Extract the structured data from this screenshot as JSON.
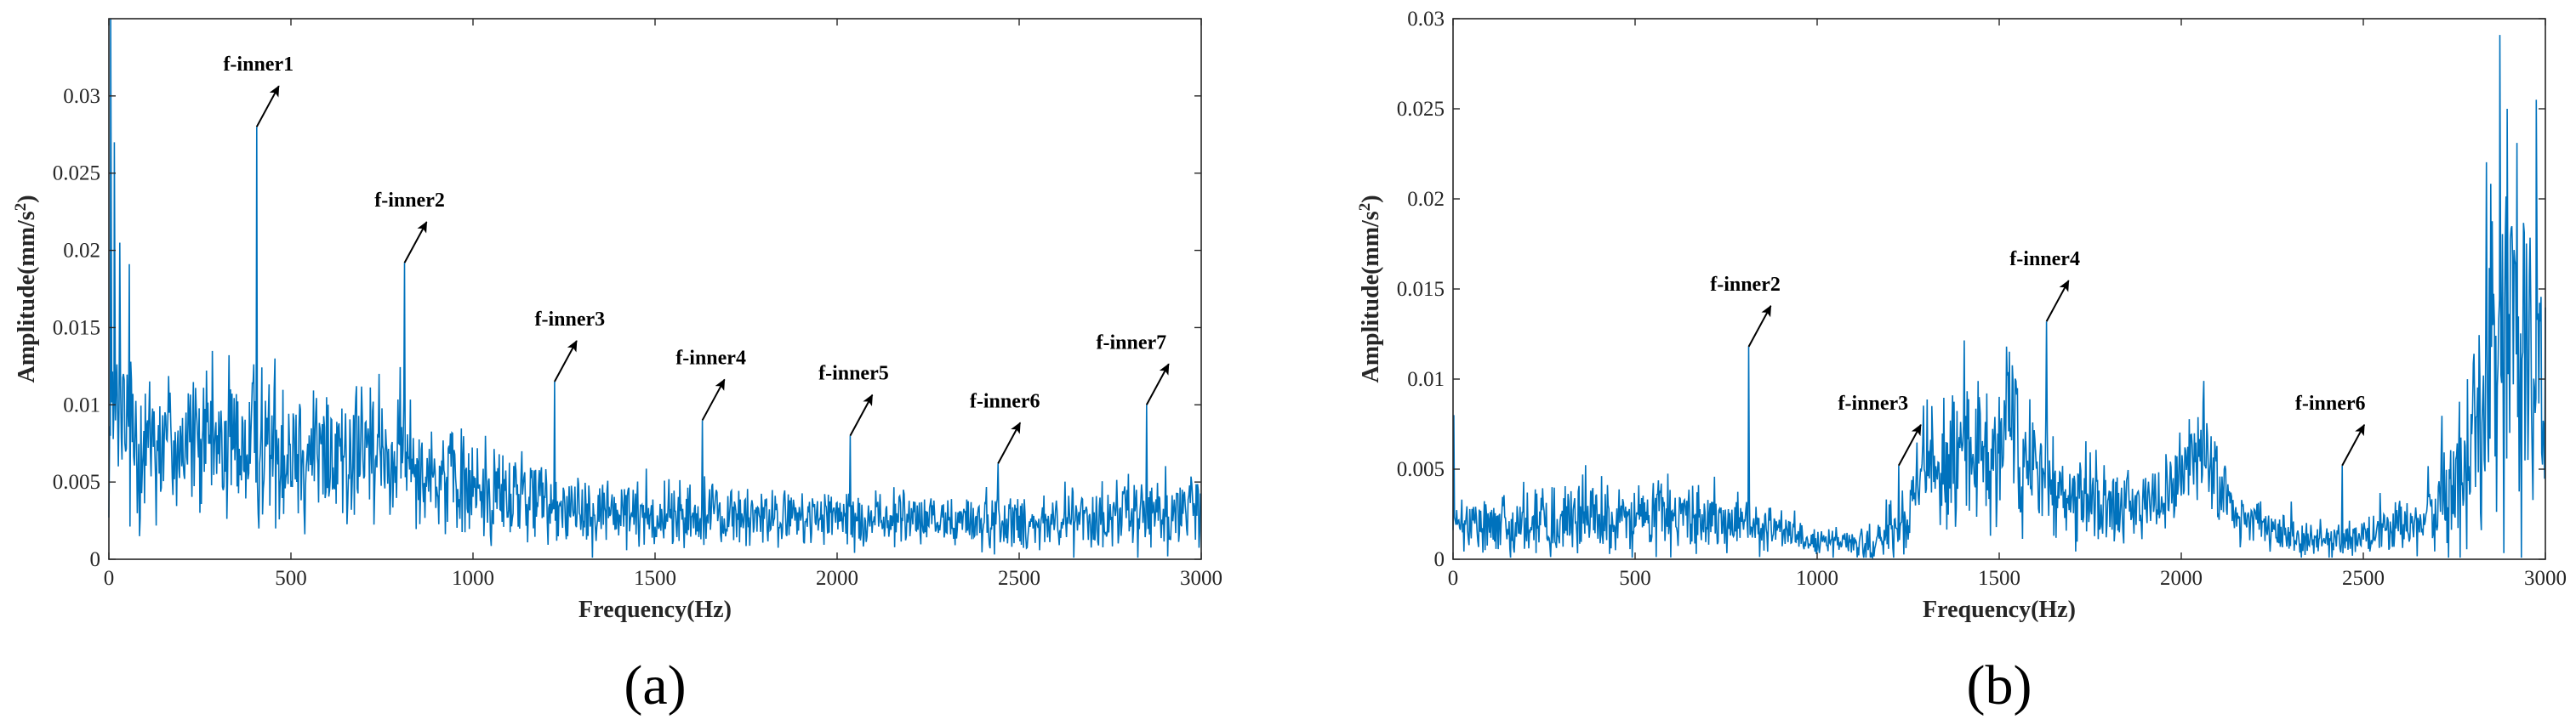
{
  "colors": {
    "signal": "#0072BD",
    "axis": "#262626",
    "annotation": "#000000"
  },
  "chart_data": [
    {
      "type": "line",
      "panel_label": "(a)",
      "xlabel": "Frequency(Hz)",
      "ylabel_main": "Amplitude(mm/s",
      "ylabel_sup": "2",
      "ylabel_end": ")",
      "xlim": [
        0,
        3000
      ],
      "ylim": [
        0,
        0.035
      ],
      "xticks": [
        0,
        500,
        1000,
        1500,
        2000,
        2500,
        3000
      ],
      "xtick_labels": [
        "0",
        "500",
        "1000",
        "1500",
        "2000",
        "2500",
        "3000"
      ],
      "yticks": [
        0,
        0.005,
        0.01,
        0.015,
        0.02,
        0.025,
        0.03
      ],
      "ytick_labels": [
        "0",
        "0.005",
        "0.01",
        "0.015",
        "0.02",
        "0.025",
        "0.03"
      ],
      "grid": false,
      "noise_profile": {
        "x": [
          0,
          50,
          200,
          500,
          800,
          1000,
          1300,
          1500,
          2000,
          2500,
          2800,
          3000
        ],
        "level": [
          0.0085,
          0.0085,
          0.0075,
          0.0072,
          0.0065,
          0.0045,
          0.0033,
          0.0028,
          0.0026,
          0.0024,
          0.0028,
          0.0032
        ],
        "spread": [
          0.0045,
          0.0045,
          0.0035,
          0.0035,
          0.0032,
          0.0025,
          0.0018,
          0.0015,
          0.0013,
          0.0013,
          0.0016,
          0.0018
        ]
      },
      "peaks": [
        {
          "x": 5,
          "y": 0.035
        },
        {
          "x": 15,
          "y": 0.027
        },
        {
          "x": 30,
          "y": 0.0205
        },
        {
          "x": 406,
          "y": 0.028,
          "label": "f-inner1"
        },
        {
          "x": 812,
          "y": 0.0192,
          "label": "f-inner2"
        },
        {
          "x": 1224,
          "y": 0.0115,
          "label": "f-inner3"
        },
        {
          "x": 1630,
          "y": 0.009,
          "label": "f-inner4"
        },
        {
          "x": 2036,
          "y": 0.008,
          "label": "f-inner5"
        },
        {
          "x": 2442,
          "y": 0.0062,
          "label": "f-inner6"
        },
        {
          "x": 2850,
          "y": 0.01,
          "label": "f-inner7"
        }
      ]
    },
    {
      "type": "line",
      "panel_label": "(b)",
      "xlabel": "Frequency(Hz)",
      "ylabel_main": "Amplitude(mm/s",
      "ylabel_sup": "2",
      "ylabel_end": ")",
      "xlim": [
        0,
        3000
      ],
      "ylim": [
        0,
        0.03
      ],
      "xticks": [
        0,
        500,
        1000,
        1500,
        2000,
        2500,
        3000
      ],
      "xtick_labels": [
        "0",
        "500",
        "1000",
        "1500",
        "2000",
        "2500",
        "3000"
      ],
      "yticks": [
        0,
        0.005,
        0.01,
        0.015,
        0.02,
        0.025,
        0.03
      ],
      "ytick_labels": [
        "0",
        "0.005",
        "0.01",
        "0.015",
        "0.02",
        "0.025",
        "0.03"
      ],
      "grid": false,
      "noise_profile": {
        "x": [
          0,
          300,
          600,
          800,
          1000,
          1150,
          1250,
          1300,
          1350,
          1450,
          1550,
          1650,
          1800,
          1950,
          2050,
          2150,
          2300,
          2500,
          2650,
          2750,
          2850,
          2900,
          3000
        ],
        "level": [
          0.0018,
          0.0022,
          0.0022,
          0.002,
          0.001,
          0.0008,
          0.002,
          0.005,
          0.005,
          0.006,
          0.006,
          0.004,
          0.003,
          0.0032,
          0.006,
          0.0025,
          0.0012,
          0.0012,
          0.002,
          0.004,
          0.009,
          0.012,
          0.011
        ],
        "spread": [
          0.001,
          0.0015,
          0.0015,
          0.0012,
          0.0006,
          0.0006,
          0.0015,
          0.0025,
          0.003,
          0.003,
          0.003,
          0.002,
          0.0015,
          0.0015,
          0.0025,
          0.0012,
          0.0008,
          0.0008,
          0.0012,
          0.0025,
          0.006,
          0.008,
          0.007
        ]
      },
      "peaks": [
        {
          "x": 2,
          "y": 0.008
        },
        {
          "x": 812,
          "y": 0.0118,
          "label": "f-inner2"
        },
        {
          "x": 1224,
          "y": 0.0052,
          "label": "f-inner3"
        },
        {
          "x": 1315,
          "y": 0.0085
        },
        {
          "x": 1445,
          "y": 0.009
        },
        {
          "x": 1520,
          "y": 0.0118
        },
        {
          "x": 1630,
          "y": 0.0132,
          "label": "f-inner4"
        },
        {
          "x": 2062,
          "y": 0.0099
        },
        {
          "x": 2442,
          "y": 0.0052,
          "label": "f-inner6"
        },
        {
          "x": 2875,
          "y": 0.0291
        },
        {
          "x": 2895,
          "y": 0.025
        },
        {
          "x": 2975,
          "y": 0.0255
        }
      ]
    }
  ]
}
